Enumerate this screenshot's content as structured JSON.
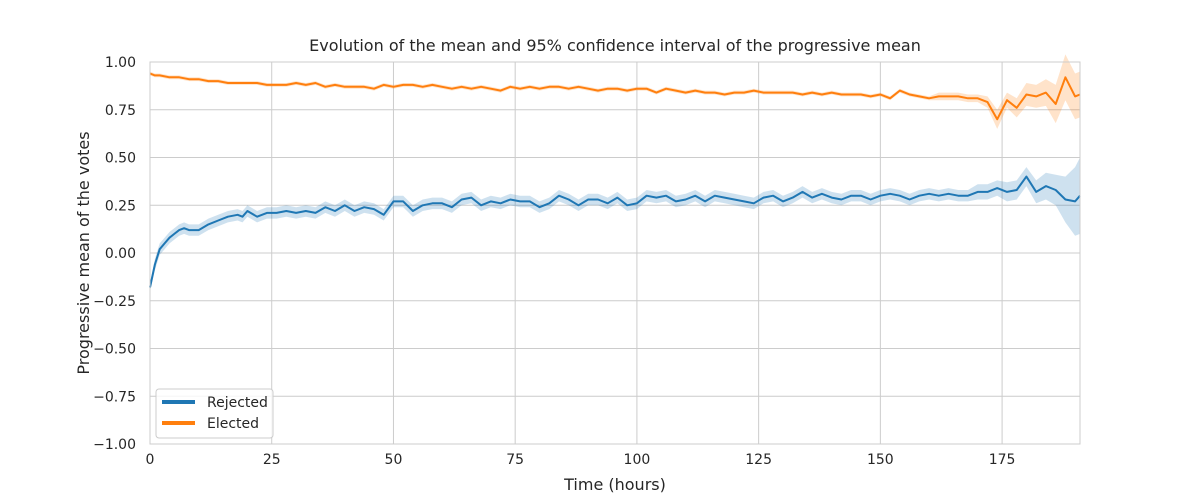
{
  "chart_data": {
    "type": "line",
    "title": "Evolution of the mean and 95% confidence interval of the progressive mean",
    "xlabel": "Time (hours)",
    "ylabel": "Progressive mean of the votes",
    "xlim": [
      0,
      191
    ],
    "ylim": [
      -1.0,
      1.0
    ],
    "xticks": [
      0,
      25,
      50,
      75,
      100,
      125,
      150,
      175
    ],
    "yticks": [
      -1.0,
      -0.75,
      -0.5,
      -0.25,
      0.0,
      0.25,
      0.5,
      0.75,
      1.0
    ],
    "xtick_labels": [
      "0",
      "25",
      "50",
      "75",
      "100",
      "125",
      "150",
      "175"
    ],
    "ytick_labels": [
      "−1.00",
      "−0.75",
      "−0.50",
      "−0.25",
      "0.00",
      "0.25",
      "0.50",
      "0.75",
      "1.00"
    ],
    "grid": true,
    "legend_position": "lower-left",
    "series": [
      {
        "name": "Rejected",
        "color": "#1f77b4",
        "x": [
          0,
          1,
          2,
          3,
          4,
          5,
          6,
          7,
          8,
          10,
          12,
          14,
          16,
          18,
          19,
          20,
          22,
          24,
          26,
          28,
          30,
          32,
          34,
          36,
          38,
          40,
          42,
          44,
          46,
          48,
          50,
          52,
          54,
          56,
          58,
          60,
          62,
          64,
          66,
          68,
          70,
          72,
          74,
          76,
          78,
          80,
          82,
          84,
          86,
          88,
          90,
          92,
          94,
          96,
          98,
          100,
          102,
          104,
          106,
          108,
          110,
          112,
          114,
          116,
          118,
          120,
          122,
          124,
          126,
          128,
          130,
          132,
          134,
          136,
          138,
          140,
          142,
          144,
          146,
          148,
          150,
          152,
          154,
          156,
          158,
          160,
          162,
          164,
          166,
          168,
          170,
          172,
          174,
          176,
          178,
          180,
          182,
          184,
          186,
          188,
          190,
          191
        ],
        "y": [
          -0.18,
          -0.06,
          0.02,
          0.05,
          0.08,
          0.1,
          0.12,
          0.13,
          0.12,
          0.12,
          0.15,
          0.17,
          0.19,
          0.2,
          0.19,
          0.22,
          0.19,
          0.21,
          0.21,
          0.22,
          0.21,
          0.22,
          0.21,
          0.24,
          0.22,
          0.25,
          0.22,
          0.24,
          0.23,
          0.2,
          0.27,
          0.27,
          0.22,
          0.25,
          0.26,
          0.26,
          0.24,
          0.28,
          0.29,
          0.25,
          0.27,
          0.26,
          0.28,
          0.27,
          0.27,
          0.24,
          0.26,
          0.3,
          0.28,
          0.25,
          0.28,
          0.28,
          0.26,
          0.29,
          0.25,
          0.26,
          0.3,
          0.29,
          0.3,
          0.27,
          0.28,
          0.3,
          0.27,
          0.3,
          0.29,
          0.28,
          0.27,
          0.26,
          0.29,
          0.3,
          0.27,
          0.29,
          0.32,
          0.29,
          0.31,
          0.29,
          0.28,
          0.3,
          0.3,
          0.28,
          0.3,
          0.31,
          0.3,
          0.28,
          0.3,
          0.31,
          0.3,
          0.31,
          0.3,
          0.3,
          0.32,
          0.32,
          0.34,
          0.32,
          0.33,
          0.4,
          0.32,
          0.35,
          0.33,
          0.28,
          0.27,
          0.3
        ],
        "ci_halfwidth": [
          0.02,
          0.03,
          0.03,
          0.03,
          0.03,
          0.03,
          0.03,
          0.03,
          0.03,
          0.03,
          0.03,
          0.03,
          0.03,
          0.03,
          0.03,
          0.03,
          0.03,
          0.03,
          0.03,
          0.03,
          0.03,
          0.03,
          0.03,
          0.03,
          0.03,
          0.03,
          0.03,
          0.03,
          0.03,
          0.03,
          0.03,
          0.03,
          0.03,
          0.03,
          0.03,
          0.03,
          0.03,
          0.03,
          0.03,
          0.03,
          0.03,
          0.03,
          0.03,
          0.03,
          0.03,
          0.03,
          0.03,
          0.03,
          0.03,
          0.03,
          0.03,
          0.03,
          0.03,
          0.03,
          0.03,
          0.03,
          0.03,
          0.03,
          0.03,
          0.03,
          0.03,
          0.03,
          0.03,
          0.03,
          0.03,
          0.03,
          0.03,
          0.03,
          0.03,
          0.03,
          0.03,
          0.03,
          0.03,
          0.03,
          0.03,
          0.03,
          0.03,
          0.03,
          0.03,
          0.03,
          0.03,
          0.03,
          0.03,
          0.03,
          0.03,
          0.03,
          0.03,
          0.03,
          0.03,
          0.03,
          0.04,
          0.04,
          0.04,
          0.05,
          0.05,
          0.05,
          0.06,
          0.07,
          0.08,
          0.12,
          0.18,
          0.2
        ]
      },
      {
        "name": "Elected",
        "color": "#ff7f0e",
        "x": [
          0,
          1,
          2,
          4,
          6,
          8,
          10,
          12,
          14,
          16,
          18,
          20,
          22,
          24,
          26,
          28,
          30,
          32,
          34,
          36,
          38,
          40,
          42,
          44,
          46,
          48,
          50,
          52,
          54,
          56,
          58,
          60,
          62,
          64,
          66,
          68,
          70,
          72,
          74,
          76,
          78,
          80,
          82,
          84,
          86,
          88,
          90,
          92,
          94,
          96,
          98,
          100,
          102,
          104,
          106,
          108,
          110,
          112,
          114,
          116,
          118,
          120,
          122,
          124,
          126,
          128,
          130,
          132,
          134,
          136,
          138,
          140,
          142,
          144,
          146,
          148,
          150,
          152,
          154,
          156,
          158,
          160,
          162,
          164,
          166,
          168,
          170,
          172,
          174,
          176,
          178,
          180,
          182,
          184,
          186,
          188,
          190,
          191
        ],
        "y": [
          0.94,
          0.93,
          0.93,
          0.92,
          0.92,
          0.91,
          0.91,
          0.9,
          0.9,
          0.89,
          0.89,
          0.89,
          0.89,
          0.88,
          0.88,
          0.88,
          0.89,
          0.88,
          0.89,
          0.87,
          0.88,
          0.87,
          0.87,
          0.87,
          0.86,
          0.88,
          0.87,
          0.88,
          0.88,
          0.87,
          0.88,
          0.87,
          0.86,
          0.87,
          0.86,
          0.87,
          0.86,
          0.85,
          0.87,
          0.86,
          0.87,
          0.86,
          0.87,
          0.87,
          0.86,
          0.87,
          0.86,
          0.85,
          0.86,
          0.86,
          0.85,
          0.86,
          0.86,
          0.84,
          0.86,
          0.85,
          0.84,
          0.85,
          0.84,
          0.84,
          0.83,
          0.84,
          0.84,
          0.85,
          0.84,
          0.84,
          0.84,
          0.84,
          0.83,
          0.84,
          0.83,
          0.84,
          0.83,
          0.83,
          0.83,
          0.82,
          0.83,
          0.81,
          0.85,
          0.83,
          0.82,
          0.81,
          0.82,
          0.82,
          0.82,
          0.81,
          0.81,
          0.79,
          0.7,
          0.8,
          0.76,
          0.83,
          0.82,
          0.84,
          0.78,
          0.92,
          0.82,
          0.83
        ],
        "ci_halfwidth": [
          0.01,
          0.01,
          0.01,
          0.01,
          0.01,
          0.01,
          0.01,
          0.01,
          0.01,
          0.01,
          0.01,
          0.01,
          0.01,
          0.01,
          0.01,
          0.01,
          0.01,
          0.01,
          0.01,
          0.01,
          0.01,
          0.01,
          0.01,
          0.01,
          0.01,
          0.01,
          0.01,
          0.01,
          0.01,
          0.01,
          0.01,
          0.01,
          0.01,
          0.01,
          0.01,
          0.01,
          0.01,
          0.01,
          0.01,
          0.01,
          0.01,
          0.01,
          0.01,
          0.01,
          0.01,
          0.01,
          0.01,
          0.01,
          0.01,
          0.01,
          0.01,
          0.01,
          0.01,
          0.01,
          0.01,
          0.01,
          0.01,
          0.01,
          0.01,
          0.01,
          0.01,
          0.01,
          0.01,
          0.01,
          0.01,
          0.01,
          0.01,
          0.01,
          0.01,
          0.01,
          0.01,
          0.01,
          0.01,
          0.01,
          0.01,
          0.01,
          0.01,
          0.01,
          0.01,
          0.01,
          0.01,
          0.01,
          0.02,
          0.02,
          0.02,
          0.02,
          0.02,
          0.03,
          0.05,
          0.04,
          0.05,
          0.06,
          0.06,
          0.07,
          0.1,
          0.12,
          0.12,
          0.12
        ]
      }
    ]
  }
}
